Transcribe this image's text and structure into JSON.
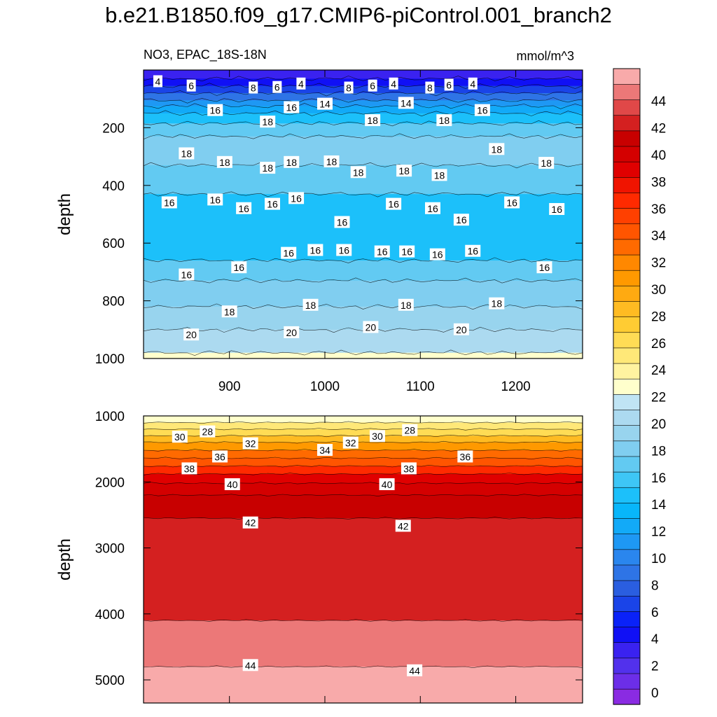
{
  "title": "b.e21.B1850.f09_g17.CMIP6-piControl.001_branch2",
  "chart_data": [
    {
      "type": "contour",
      "subtitle_left": "NO3, EPAC_18S-18N",
      "subtitle_right": "mmol/m^3",
      "ylabel": "depth",
      "xlim": [
        810,
        1270
      ],
      "ylim": [
        1000,
        0
      ],
      "xticks": [
        900,
        1000,
        1100,
        1200
      ],
      "xtick_labels": [
        "900",
        "1000",
        "1100",
        "1200"
      ],
      "yticks": [
        200,
        400,
        600,
        800,
        1000
      ],
      "ytick_labels": [
        "200",
        "400",
        "600",
        "800",
        "1000"
      ],
      "bands": [
        {
          "from": 0,
          "to": 30,
          "value": 3
        },
        {
          "from": 30,
          "to": 55,
          "value": 5
        },
        {
          "from": 55,
          "to": 80,
          "value": 7
        },
        {
          "from": 80,
          "to": 105,
          "value": 9
        },
        {
          "from": 105,
          "to": 125,
          "value": 11
        },
        {
          "from": 125,
          "to": 150,
          "value": 13
        },
        {
          "from": 150,
          "to": 185,
          "value": 15
        },
        {
          "from": 185,
          "to": 230,
          "value": 17
        },
        {
          "from": 230,
          "to": 330,
          "value": 18.5
        },
        {
          "from": 330,
          "to": 430,
          "value": 17
        },
        {
          "from": 430,
          "to": 660,
          "value": 15
        },
        {
          "from": 660,
          "to": 730,
          "value": 17
        },
        {
          "from": 730,
          "to": 820,
          "value": 18.5
        },
        {
          "from": 820,
          "to": 900,
          "value": 19.5
        },
        {
          "from": 900,
          "to": 980,
          "value": 21
        },
        {
          "from": 980,
          "to": 1000,
          "value": 23
        }
      ],
      "contour_labels": [
        {
          "x": 825,
          "y": 40,
          "text": "4"
        },
        {
          "x": 860,
          "y": 55,
          "text": "6"
        },
        {
          "x": 925,
          "y": 62,
          "text": "8"
        },
        {
          "x": 950,
          "y": 60,
          "text": "6"
        },
        {
          "x": 975,
          "y": 48,
          "text": "4"
        },
        {
          "x": 1025,
          "y": 62,
          "text": "8"
        },
        {
          "x": 1050,
          "y": 55,
          "text": "6"
        },
        {
          "x": 1072,
          "y": 48,
          "text": "4"
        },
        {
          "x": 1110,
          "y": 62,
          "text": "8"
        },
        {
          "x": 1130,
          "y": 52,
          "text": "6"
        },
        {
          "x": 1155,
          "y": 48,
          "text": "4"
        },
        {
          "x": 1000,
          "y": 118,
          "text": "14"
        },
        {
          "x": 1085,
          "y": 115,
          "text": "14"
        },
        {
          "x": 885,
          "y": 140,
          "text": "16"
        },
        {
          "x": 965,
          "y": 130,
          "text": "16"
        },
        {
          "x": 1165,
          "y": 140,
          "text": "16"
        },
        {
          "x": 940,
          "y": 180,
          "text": "18"
        },
        {
          "x": 1050,
          "y": 175,
          "text": "18"
        },
        {
          "x": 1125,
          "y": 175,
          "text": "18"
        },
        {
          "x": 855,
          "y": 290,
          "text": "18"
        },
        {
          "x": 1180,
          "y": 275,
          "text": "18"
        },
        {
          "x": 895,
          "y": 320,
          "text": "18"
        },
        {
          "x": 940,
          "y": 340,
          "text": "18"
        },
        {
          "x": 965,
          "y": 320,
          "text": "18"
        },
        {
          "x": 1007,
          "y": 318,
          "text": "18"
        },
        {
          "x": 1035,
          "y": 355,
          "text": "18"
        },
        {
          "x": 1083,
          "y": 350,
          "text": "18"
        },
        {
          "x": 1120,
          "y": 365,
          "text": "18"
        },
        {
          "x": 1232,
          "y": 323,
          "text": "18"
        },
        {
          "x": 837,
          "y": 460,
          "text": "16"
        },
        {
          "x": 885,
          "y": 450,
          "text": "16"
        },
        {
          "x": 915,
          "y": 480,
          "text": "16"
        },
        {
          "x": 945,
          "y": 465,
          "text": "16"
        },
        {
          "x": 970,
          "y": 445,
          "text": "16"
        },
        {
          "x": 1018,
          "y": 528,
          "text": "16"
        },
        {
          "x": 1072,
          "y": 465,
          "text": "16"
        },
        {
          "x": 1113,
          "y": 480,
          "text": "16"
        },
        {
          "x": 1143,
          "y": 520,
          "text": "16"
        },
        {
          "x": 1196,
          "y": 460,
          "text": "16"
        },
        {
          "x": 1243,
          "y": 483,
          "text": "16"
        },
        {
          "x": 962,
          "y": 635,
          "text": "16"
        },
        {
          "x": 990,
          "y": 625,
          "text": "16"
        },
        {
          "x": 1020,
          "y": 625,
          "text": "16"
        },
        {
          "x": 1060,
          "y": 630,
          "text": "16"
        },
        {
          "x": 1086,
          "y": 630,
          "text": "16"
        },
        {
          "x": 1118,
          "y": 640,
          "text": "16"
        },
        {
          "x": 1155,
          "y": 628,
          "text": "16"
        },
        {
          "x": 855,
          "y": 710,
          "text": "16"
        },
        {
          "x": 910,
          "y": 685,
          "text": "16"
        },
        {
          "x": 1230,
          "y": 685,
          "text": "16"
        },
        {
          "x": 900,
          "y": 838,
          "text": "18"
        },
        {
          "x": 985,
          "y": 815,
          "text": "18"
        },
        {
          "x": 1085,
          "y": 815,
          "text": "18"
        },
        {
          "x": 1180,
          "y": 810,
          "text": "18"
        },
        {
          "x": 860,
          "y": 918,
          "text": "20"
        },
        {
          "x": 965,
          "y": 910,
          "text": "20"
        },
        {
          "x": 1048,
          "y": 892,
          "text": "20"
        },
        {
          "x": 1143,
          "y": 900,
          "text": "20"
        }
      ]
    },
    {
      "type": "contour",
      "ylabel": "depth",
      "xlim": [
        810,
        1270
      ],
      "ylim": [
        5350,
        1000
      ],
      "xticks": [
        900,
        1000,
        1100,
        1200
      ],
      "yticks": [
        1000,
        2000,
        3000,
        4000,
        5000
      ],
      "ytick_labels": [
        "1000",
        "2000",
        "3000",
        "4000",
        "5000"
      ],
      "bands": [
        {
          "from": 1000,
          "to": 1100,
          "value": 23
        },
        {
          "from": 1100,
          "to": 1200,
          "value": 25
        },
        {
          "from": 1200,
          "to": 1300,
          "value": 27
        },
        {
          "from": 1300,
          "to": 1400,
          "value": 29
        },
        {
          "from": 1400,
          "to": 1520,
          "value": 31
        },
        {
          "from": 1520,
          "to": 1640,
          "value": 33
        },
        {
          "from": 1640,
          "to": 1760,
          "value": 35
        },
        {
          "from": 1760,
          "to": 1880,
          "value": 37
        },
        {
          "from": 1880,
          "to": 2020,
          "value": 39
        },
        {
          "from": 2020,
          "to": 2200,
          "value": 40.5
        },
        {
          "from": 2200,
          "to": 2550,
          "value": 41.5
        },
        {
          "from": 2550,
          "to": 4100,
          "value": 43
        },
        {
          "from": 4100,
          "to": 4800,
          "value": 44.5
        },
        {
          "from": 4800,
          "to": 5350,
          "value": 45.5
        }
      ],
      "contour_labels": [
        {
          "x": 848,
          "y": 1320,
          "text": "30"
        },
        {
          "x": 877,
          "y": 1240,
          "text": "28"
        },
        {
          "x": 922,
          "y": 1420,
          "text": "32"
        },
        {
          "x": 890,
          "y": 1620,
          "text": "36"
        },
        {
          "x": 858,
          "y": 1800,
          "text": "38"
        },
        {
          "x": 903,
          "y": 2040,
          "text": "40"
        },
        {
          "x": 1000,
          "y": 1520,
          "text": "34"
        },
        {
          "x": 1027,
          "y": 1410,
          "text": "32"
        },
        {
          "x": 1055,
          "y": 1310,
          "text": "30"
        },
        {
          "x": 1089,
          "y": 1220,
          "text": "28"
        },
        {
          "x": 1147,
          "y": 1620,
          "text": "36"
        },
        {
          "x": 1088,
          "y": 1800,
          "text": "38"
        },
        {
          "x": 1065,
          "y": 2040,
          "text": "40"
        },
        {
          "x": 922,
          "y": 2620,
          "text": "42"
        },
        {
          "x": 1082,
          "y": 2670,
          "text": "42"
        },
        {
          "x": 922,
          "y": 4780,
          "text": "44"
        },
        {
          "x": 1094,
          "y": 4860,
          "text": "44"
        }
      ]
    }
  ],
  "colorbar": {
    "min": 0,
    "step": 2,
    "labels": [
      "0",
      "2",
      "4",
      "6",
      "8",
      "10",
      "12",
      "14",
      "16",
      "18",
      "20",
      "22",
      "24",
      "26",
      "28",
      "30",
      "32",
      "34",
      "36",
      "38",
      "40",
      "42",
      "44"
    ],
    "colors": [
      "#8a2be2",
      "#6c2ee8",
      "#5231ec",
      "#3a22f0",
      "#1010f5",
      "#0a22f8",
      "#1a44e8",
      "#2a5ee0",
      "#2e74e6",
      "#2a86ee",
      "#1e98f4",
      "#12aaf8",
      "#08b6fa",
      "#1cc0fa",
      "#3ec6f6",
      "#62caf2",
      "#80cef0",
      "#98d4ee",
      "#acdaf0",
      "#c0e4f4",
      "#ffffcc",
      "#fff3a0",
      "#ffe878",
      "#ffdc55",
      "#ffcc33",
      "#ffbb22",
      "#ffaa11",
      "#ff9900",
      "#ff8800",
      "#ff6a00",
      "#ff5500",
      "#ff4000",
      "#ff2a00",
      "#f01400",
      "#e00000",
      "#d40000",
      "#c80000",
      "#d42020",
      "#e04848",
      "#ec7878",
      "#f8aaaa"
    ]
  }
}
